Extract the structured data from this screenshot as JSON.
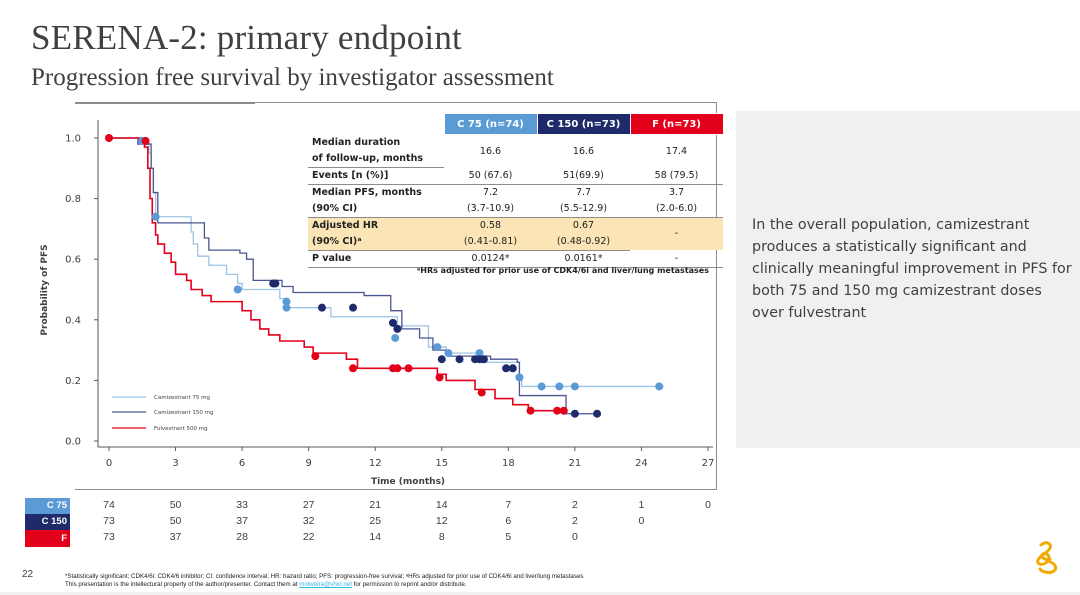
{
  "slide": {
    "title": "SERENA-2: primary endpoint",
    "subtitle": "Progression free survival by investigator assessment",
    "page_number": "22",
    "callout": "In the overall population, camizestrant produces a statistically significant and clinically meaningful improvement in PFS for both 75 and 150 mg camizestrant doses over fulvestrant",
    "footnote_line1": "*Statistically significant; CDK4/6i: CDK4/6 inhibitor; CI: confidence interval; HR: hazard ratio; PFS: progression-free survival; ᵃHRs adjusted for prior use of CDK4/6i and liver/lung metastases",
    "footnote_line2_pre": "This presentation is the intellectural property of the author/presenter. Contact them at ",
    "footnote_link": "moliveira@vhio.net",
    "footnote_line2_post": " for permission to reprint and/or distribute.",
    "logo_icon": "astrazeneca-logo-icon"
  },
  "colors": {
    "c75": "#5b9bd5",
    "c75_line": "#9dc3e6",
    "c150": "#1f2a6b",
    "c150_line": "#4a5592",
    "f": "#e3001b",
    "hr_row_bg": "#fbe5b6",
    "callout_bg": "#f0f0f0"
  },
  "stats_table": {
    "headers": [
      "C 75 (n=74)",
      "C 150 (n=73)",
      "F (n=73)"
    ],
    "rows": [
      {
        "label": [
          "Median duration",
          "of follow-up, months"
        ],
        "values": [
          [
            "16.6"
          ],
          [
            "16.6"
          ],
          [
            "17.4"
          ]
        ]
      },
      {
        "label": [
          "Events [n (%)]"
        ],
        "values": [
          [
            "50 (67.6)"
          ],
          [
            "51(69.9)"
          ],
          [
            "58 (79.5)"
          ]
        ]
      },
      {
        "label": [
          "Median PFS, months",
          "(90% CI)"
        ],
        "values": [
          [
            "7.2",
            "(3.7-10.9)"
          ],
          [
            "7.7",
            "(5.5-12.9)"
          ],
          [
            "3.7",
            "(2.0-6.0)"
          ]
        ]
      },
      {
        "label": [
          "Adjusted HR",
          "(90% CI)ᵃ"
        ],
        "values": [
          [
            "0.58",
            "(0.41-0.81)"
          ],
          [
            "0.67",
            "(0.48-0.92)"
          ],
          [
            "-"
          ]
        ]
      },
      {
        "label": [
          "P value"
        ],
        "values": [
          [
            "0.0124*"
          ],
          [
            "0.0161*"
          ],
          [
            "-"
          ]
        ]
      }
    ],
    "footnote": "ᵃHRs adjusted for prior use of CDK4/6i and liver/lung metastases"
  },
  "risk_table": {
    "rows": [
      {
        "label": "C 75",
        "values": [
          "74",
          "50",
          "33",
          "27",
          "21",
          "14",
          "7",
          "2",
          "1",
          "0"
        ]
      },
      {
        "label": "C 150",
        "values": [
          "73",
          "50",
          "37",
          "32",
          "25",
          "12",
          "6",
          "2",
          "0"
        ]
      },
      {
        "label": "F",
        "values": [
          "73",
          "37",
          "28",
          "22",
          "14",
          "8",
          "5",
          "0"
        ]
      }
    ]
  },
  "chart_data": {
    "type": "line",
    "subtype": "kaplan-meier-step",
    "title": "",
    "xlabel": "Time (months)",
    "ylabel": "Probability of PFS",
    "xlim": [
      0,
      27
    ],
    "ylim": [
      0,
      1.0
    ],
    "xticks": [
      "0",
      "3",
      "6",
      "9",
      "12",
      "15",
      "18",
      "21",
      "24",
      "27"
    ],
    "yticks": [
      "0.0",
      "0.2",
      "0.4",
      "0.6",
      "0.8",
      "1.0"
    ],
    "grid": false,
    "legend_position": "bottom-left",
    "series": [
      {
        "name": "Camizestrant 75 mg",
        "key": "c75",
        "steps": [
          [
            0,
            1.0
          ],
          [
            1.4,
            1.0
          ],
          [
            1.7,
            0.98
          ],
          [
            1.8,
            0.95
          ],
          [
            1.9,
            0.9
          ],
          [
            2.0,
            0.82
          ],
          [
            2.1,
            0.74
          ],
          [
            3.6,
            0.74
          ],
          [
            3.7,
            0.69
          ],
          [
            3.8,
            0.65
          ],
          [
            4.0,
            0.61
          ],
          [
            4.5,
            0.58
          ],
          [
            5.3,
            0.55
          ],
          [
            5.8,
            0.52
          ],
          [
            6.0,
            0.5
          ],
          [
            7.3,
            0.5
          ],
          [
            7.7,
            0.47
          ],
          [
            8.0,
            0.44
          ],
          [
            9.8,
            0.44
          ],
          [
            10.0,
            0.41
          ],
          [
            12.8,
            0.41
          ],
          [
            13.0,
            0.38
          ],
          [
            14.4,
            0.31
          ],
          [
            15.2,
            0.29
          ],
          [
            16.8,
            0.26
          ],
          [
            18.4,
            0.26
          ],
          [
            18.5,
            0.2
          ],
          [
            18.6,
            0.18
          ],
          [
            25.0,
            0.18
          ]
        ],
        "censored": [
          [
            1.5,
            0.99
          ],
          [
            2.1,
            0.74
          ],
          [
            5.8,
            0.5
          ],
          [
            8.0,
            0.46
          ],
          [
            8.0,
            0.44
          ],
          [
            12.9,
            0.34
          ],
          [
            14.8,
            0.31
          ],
          [
            15.3,
            0.29
          ],
          [
            16.7,
            0.29
          ],
          [
            16.8,
            0.27
          ],
          [
            18.5,
            0.21
          ],
          [
            19.5,
            0.18
          ],
          [
            20.3,
            0.18
          ],
          [
            21.0,
            0.18
          ],
          [
            24.8,
            0.18
          ]
        ]
      },
      {
        "name": "Camizestrant 150 mg",
        "key": "c150",
        "steps": [
          [
            0,
            1.0
          ],
          [
            1.2,
            1.0
          ],
          [
            1.3,
            0.98
          ],
          [
            1.8,
            0.98
          ],
          [
            1.9,
            0.9
          ],
          [
            2.0,
            0.82
          ],
          [
            2.2,
            0.72
          ],
          [
            4.2,
            0.72
          ],
          [
            4.3,
            0.67
          ],
          [
            4.5,
            0.63
          ],
          [
            5.9,
            0.62
          ],
          [
            6.2,
            0.6
          ],
          [
            6.5,
            0.53
          ],
          [
            7.3,
            0.53
          ],
          [
            7.8,
            0.51
          ],
          [
            8.3,
            0.49
          ],
          [
            11.5,
            0.48
          ],
          [
            12.7,
            0.43
          ],
          [
            13.2,
            0.37
          ],
          [
            14.0,
            0.34
          ],
          [
            14.6,
            0.3
          ],
          [
            15.3,
            0.28
          ],
          [
            17.2,
            0.27
          ],
          [
            18.4,
            0.26
          ],
          [
            18.5,
            0.15
          ],
          [
            20.5,
            0.15
          ],
          [
            20.6,
            0.09
          ],
          [
            22.0,
            0.09
          ]
        ],
        "censored": [
          [
            7.4,
            0.52
          ],
          [
            7.5,
            0.52
          ],
          [
            9.6,
            0.44
          ],
          [
            11.0,
            0.44
          ],
          [
            12.8,
            0.39
          ],
          [
            13.0,
            0.37
          ],
          [
            15.0,
            0.27
          ],
          [
            15.8,
            0.27
          ],
          [
            16.5,
            0.27
          ],
          [
            16.7,
            0.27
          ],
          [
            16.9,
            0.27
          ],
          [
            17.9,
            0.24
          ],
          [
            18.2,
            0.24
          ],
          [
            21.0,
            0.09
          ],
          [
            22.0,
            0.09
          ]
        ]
      },
      {
        "name": "Fulvestrant 500 mg",
        "key": "f",
        "steps": [
          [
            0,
            1.0
          ],
          [
            1.5,
            1.0
          ],
          [
            1.6,
            0.97
          ],
          [
            1.75,
            0.9
          ],
          [
            1.85,
            0.8
          ],
          [
            1.95,
            0.72
          ],
          [
            2.1,
            0.68
          ],
          [
            2.2,
            0.65
          ],
          [
            2.5,
            0.62
          ],
          [
            2.8,
            0.59
          ],
          [
            3.0,
            0.55
          ],
          [
            3.5,
            0.53
          ],
          [
            3.7,
            0.5
          ],
          [
            4.2,
            0.48
          ],
          [
            4.6,
            0.46
          ],
          [
            5.6,
            0.46
          ],
          [
            6.0,
            0.43
          ],
          [
            6.4,
            0.4
          ],
          [
            6.8,
            0.37
          ],
          [
            7.2,
            0.35
          ],
          [
            7.7,
            0.33
          ],
          [
            8.0,
            0.33
          ],
          [
            8.8,
            0.31
          ],
          [
            9.2,
            0.29
          ],
          [
            10.5,
            0.29
          ],
          [
            10.7,
            0.27
          ],
          [
            11.2,
            0.24
          ],
          [
            14.6,
            0.24
          ],
          [
            14.8,
            0.22
          ],
          [
            15.2,
            0.2
          ],
          [
            16.5,
            0.17
          ],
          [
            17.4,
            0.14
          ],
          [
            18.2,
            0.12
          ],
          [
            18.9,
            0.1
          ],
          [
            20.5,
            0.1
          ]
        ],
        "censored": [
          [
            0,
            1.0
          ],
          [
            1.65,
            0.99
          ],
          [
            9.3,
            0.28
          ],
          [
            11.0,
            0.24
          ],
          [
            12.8,
            0.24
          ],
          [
            13.0,
            0.24
          ],
          [
            13.5,
            0.24
          ],
          [
            14.9,
            0.21
          ],
          [
            16.8,
            0.16
          ],
          [
            19.0,
            0.1
          ],
          [
            20.2,
            0.1
          ],
          [
            20.5,
            0.1
          ]
        ]
      }
    ]
  }
}
